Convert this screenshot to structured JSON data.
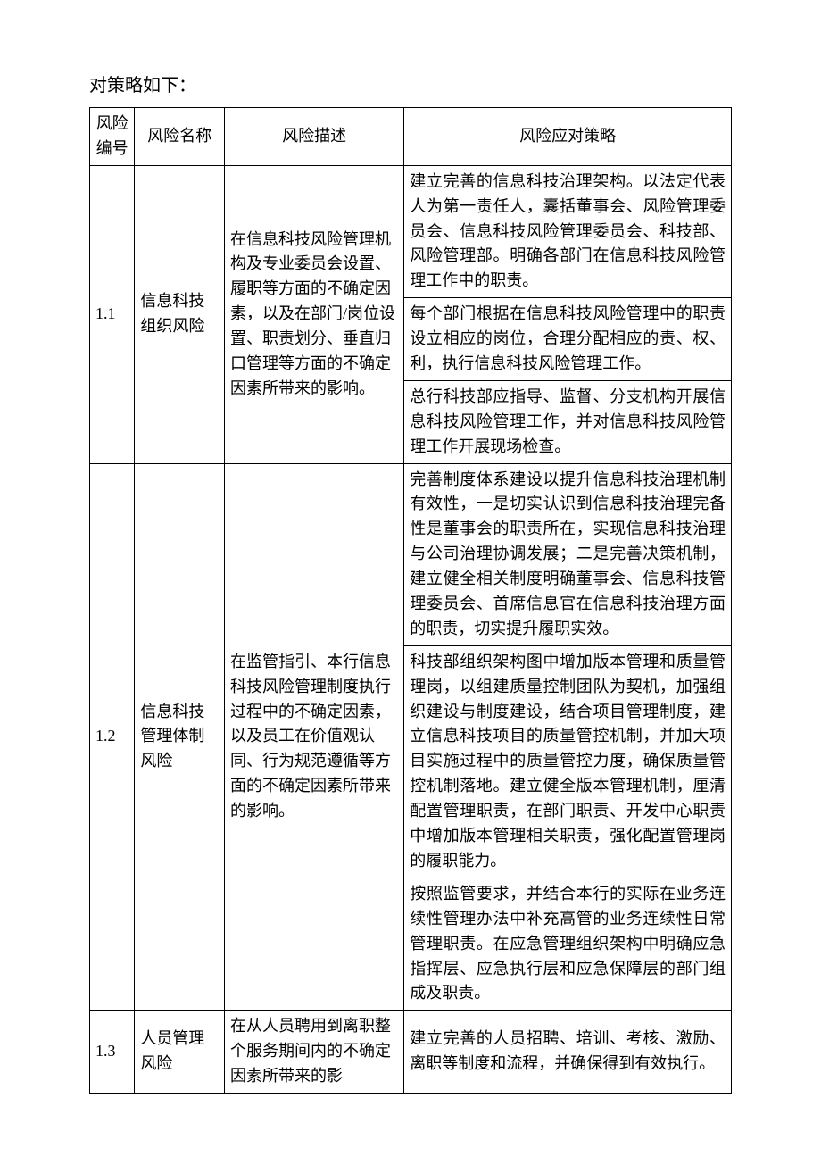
{
  "intro": "对策略如下：",
  "table": {
    "headers": [
      "风险编号",
      "风险名称",
      "风险描述",
      "风险应对策略"
    ],
    "rows": [
      {
        "id": "1.1",
        "name": "信息科技组织风险",
        "desc": "在信息科技风险管理机构及专业委员会设置、履职等方面的不确定因素，以及在部门/岗位设置、职责划分、垂直归口管理等方面的不确定因素所带来的影响。",
        "strategies": [
          "建立完善的信息科技治理架构。以法定代表人为第一责任人，囊括董事会、风险管理委员会、信息科技风险管理委员会、科技部、风险管理部。明确各部门在信息科技风险管理工作中的职责。",
          "每个部门根据在信息科技风险管理中的职责设立相应的岗位，合理分配相应的责、权、利，执行信息科技风险管理工作。",
          "总行科技部应指导、监督、分支机构开展信息科技风险管理工作，并对信息科技风险管理工作开展现场检查。"
        ]
      },
      {
        "id": "1.2",
        "name": "信息科技管理体制风险",
        "desc": "在监管指引、本行信息科技风险管理制度执行过程中的不确定因素，以及员工在价值观认同、行为规范遵循等方面的不确定因素所带来的影响。",
        "strategies": [
          "完善制度体系建设以提升信息科技治理机制有效性，一是切实认识到信息科技治理完备性是董事会的职责所在，实现信息科技治理与公司治理协调发展；二是完善决策机制，建立健全相关制度明确董事会、信息科技管理委员会、首席信息官在信息科技治理方面的职责，切实提升履职实效。",
          "科技部组织架构图中增加版本管理和质量管理岗，以组建质量控制团队为契机，加强组织建设与制度建设，结合项目管理制度，建立信息科技项目的质量管控机制，并加大项目实施过程中的质量管控力度，确保质量管控机制落地。建立健全版本管理机制，厘清配置管理职责，在部门职责、开发中心职责中增加版本管理相关职责，强化配置管理岗的履职能力。",
          "按照监管要求，并结合本行的实际在业务连续性管理办法中补充高管的业务连续性日常管理职责。在应急管理组织架构中明确应急指挥层、应急执行层和应急保障层的部门组成及职责。"
        ]
      },
      {
        "id": "1.3",
        "name": "人员管理风险",
        "desc": "在从人员聘用到离职整个服务期间内的不确定因素所带来的影",
        "strategies": [
          "建立完善的人员招聘、培训、考核、激励、离职等制度和流程，并确保得到有效执行。"
        ]
      }
    ]
  }
}
